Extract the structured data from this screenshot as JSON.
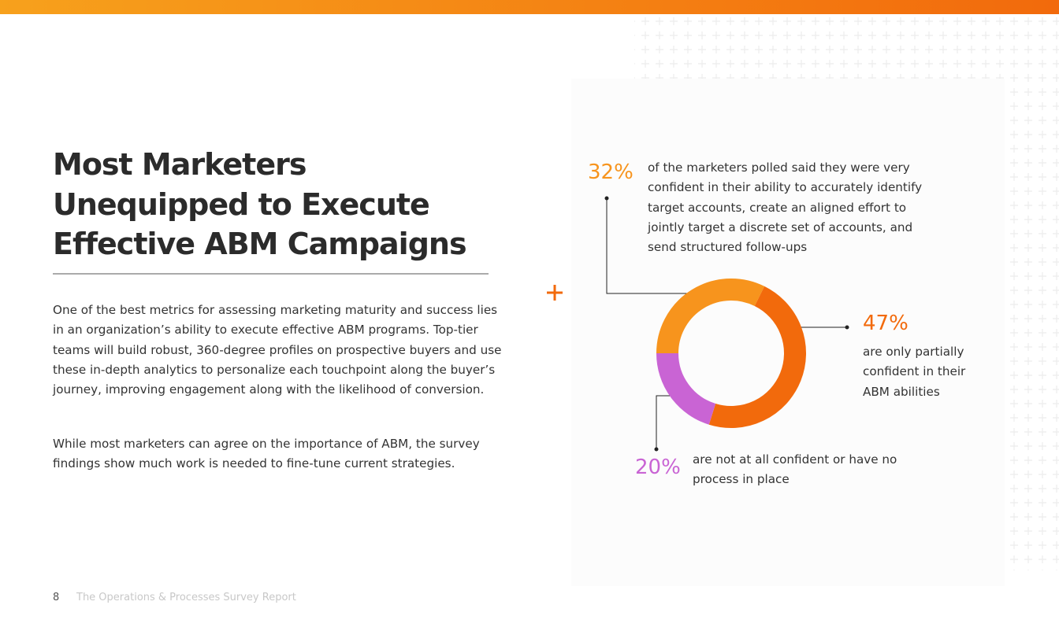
{
  "header": {
    "title": "Most Marketers Unequipped to Execute Effective ABM Campaigns"
  },
  "body": {
    "paragraphs": [
      "One of the best metrics for assessing marketing maturity and success lies in an organization’s ability to execute effective ABM programs. Top-tier teams will build robust, 360-degree profiles on prospective buyers and use these in-depth analytics to personalize each touchpoint along the buyer’s journey, improving engagement along with the likelihood of conversion.",
      "While most marketers can agree on the importance of ABM, the survey findings show much work is needed to fine-tune current strategies."
    ]
  },
  "footer": {
    "page": "8",
    "report": "The Operations & Processes Survey Report"
  },
  "chart_data": {
    "type": "pie",
    "categories": [
      "of the marketers polled said they were very confident in their ability to accurately identify target accounts, create an aligned effort to jointly target a discrete set of accounts, and send structured follow-ups",
      "are only partially confident in their ABM abilities",
      "are not at all confident or have no process in place"
    ],
    "values": [
      32,
      47,
      20
    ],
    "value_labels": [
      "32%",
      "47%",
      "20%"
    ],
    "colors": [
      "#f7941d",
      "#f26a0c",
      "#c964d4"
    ]
  }
}
